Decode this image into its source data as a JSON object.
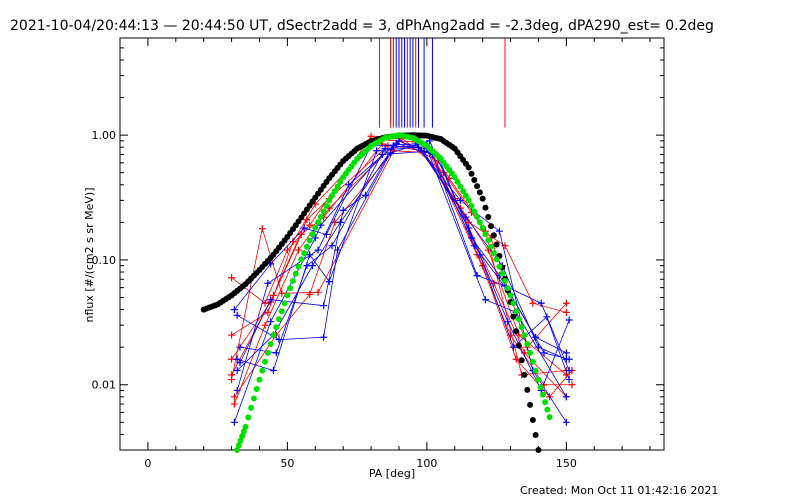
{
  "chart_data": {
    "type": "line",
    "title": "2021-10-04/20:44:13 — 20:44:50 UT, dSectr2add = 3, dPhAng2add = -2.3deg, dPA290_est=  0.2deg",
    "xlabel": "PA [deg]",
    "ylabel": "nflux [#/(cm2 s sr MeV)]",
    "xlim": [
      -10,
      185
    ],
    "ylim": [
      0.003,
      6.0
    ],
    "yscale": "log",
    "grid": false,
    "legend": "none",
    "x_ticks": [
      0,
      50,
      100,
      150
    ],
    "x_tick_labels": [
      "0",
      "50",
      "100",
      "150"
    ],
    "y_ticks": [
      0.01,
      0.1,
      1.0
    ],
    "y_tick_labels": [
      "0.01",
      "0.10",
      "1.00"
    ],
    "colors": {
      "red": "#ff0000",
      "blue": "#0000ff",
      "green": "#00e000",
      "black": "#000000"
    },
    "footer": "Created: Mon Oct 11 01:42:16 2021",
    "markers_pa": {
      "red": [
        83,
        87,
        88,
        90,
        92,
        93,
        96,
        128
      ],
      "blue": [
        89,
        90,
        91,
        92,
        94,
        95,
        97,
        99,
        102
      ]
    },
    "series": [
      {
        "color": "red",
        "values": [
          [
            30,
            0.072
          ],
          [
            42,
            0.045
          ],
          [
            50,
            0.12
          ],
          [
            58,
            0.19
          ],
          [
            80,
            0.98
          ],
          [
            95,
            0.95
          ],
          [
            110,
            0.31
          ],
          [
            122,
            0.12
          ],
          [
            133,
            0.025
          ],
          [
            150,
            0.012
          ]
        ]
      },
      {
        "color": "red",
        "values": [
          [
            30,
            0.025
          ],
          [
            43,
            0.038
          ],
          [
            52,
            0.14
          ],
          [
            60,
            0.28
          ],
          [
            82,
            0.92
          ],
          [
            96,
            0.88
          ],
          [
            112,
            0.26
          ],
          [
            124,
            0.065
          ],
          [
            135,
            0.018
          ],
          [
            150,
            0.008
          ]
        ]
      },
      {
        "color": "red",
        "values": [
          [
            30,
            0.016
          ],
          [
            44,
            0.046
          ],
          [
            55,
            0.16
          ],
          [
            63,
            0.22
          ],
          [
            84,
            0.85
          ],
          [
            98,
            0.75
          ],
          [
            115,
            0.2
          ],
          [
            128,
            0.13
          ],
          [
            138,
            0.045
          ],
          [
            150,
            0.038
          ]
        ]
      },
      {
        "color": "red",
        "values": [
          [
            30,
            0.012
          ],
          [
            45,
            0.052
          ],
          [
            57,
            0.21
          ],
          [
            65,
            0.31
          ],
          [
            86,
            0.82
          ],
          [
            100,
            0.8
          ],
          [
            118,
            0.11
          ],
          [
            130,
            0.025
          ],
          [
            142,
            0.01
          ],
          [
            152,
            0.01
          ]
        ]
      },
      {
        "color": "red",
        "values": [
          [
            31,
            0.008
          ],
          [
            46,
            0.025
          ],
          [
            58,
            0.053
          ],
          [
            67,
            0.2
          ],
          [
            88,
            0.75
          ],
          [
            102,
            0.72
          ],
          [
            120,
            0.09
          ],
          [
            132,
            0.016
          ],
          [
            144,
            0.008
          ],
          [
            152,
            0.013
          ]
        ]
      },
      {
        "color": "red",
        "values": [
          [
            30,
            0.011
          ],
          [
            41,
            0.178
          ],
          [
            48,
            0.054
          ],
          [
            61,
            0.055
          ],
          [
            90,
            0.9
          ],
          [
            104,
            0.62
          ],
          [
            108,
            0.45
          ],
          [
            123,
            0.15
          ],
          [
            136,
            0.02
          ],
          [
            150,
            0.045
          ]
        ]
      },
      {
        "color": "red",
        "values": [
          [
            31,
            0.007
          ],
          [
            42,
            0.03
          ],
          [
            54,
            0.12
          ],
          [
            65,
            0.26
          ],
          [
            91,
            0.95
          ],
          [
            106,
            0.5
          ],
          [
            116,
            0.24
          ],
          [
            121,
            0.17
          ],
          [
            134,
            0.012
          ],
          [
            150,
            0.013
          ]
        ]
      },
      {
        "color": "blue",
        "values": [
          [
            31,
            0.04
          ],
          [
            44,
            0.093
          ],
          [
            56,
            0.18
          ],
          [
            64,
            0.16
          ],
          [
            80,
            0.82
          ],
          [
            96,
            0.85
          ],
          [
            112,
            0.3
          ],
          [
            126,
            0.17
          ],
          [
            138,
            0.013
          ],
          [
            150,
            0.005
          ]
        ]
      },
      {
        "color": "blue",
        "values": [
          [
            32,
            0.016
          ],
          [
            45,
            0.013
          ],
          [
            58,
            0.11
          ],
          [
            65,
            0.067
          ],
          [
            82,
            0.75
          ],
          [
            97,
            0.8
          ],
          [
            114,
            0.22
          ],
          [
            127,
            0.09
          ],
          [
            140,
            0.02
          ],
          [
            150,
            0.016
          ]
        ]
      },
      {
        "color": "blue",
        "values": [
          [
            31,
            0.005
          ],
          [
            44,
            0.032
          ],
          [
            60,
            0.15
          ],
          [
            62,
            0.19
          ],
          [
            84,
            0.7
          ],
          [
            99,
            0.74
          ],
          [
            115,
            0.18
          ],
          [
            129,
            0.032
          ],
          [
            141,
            0.009
          ],
          [
            151,
            0.033
          ]
        ]
      },
      {
        "color": "blue",
        "values": [
          [
            33,
            0.02
          ],
          [
            46,
            0.018
          ],
          [
            57,
            0.09
          ],
          [
            66,
            0.13
          ],
          [
            85,
            0.78
          ],
          [
            100,
            0.85
          ],
          [
            117,
            0.13
          ],
          [
            130,
            0.053
          ],
          [
            142,
            0.018
          ],
          [
            151,
            0.016
          ]
        ]
      },
      {
        "color": "blue",
        "values": [
          [
            32,
            0.036
          ],
          [
            47,
            0.023
          ],
          [
            63,
            0.024
          ],
          [
            68,
            0.12
          ],
          [
            87,
            0.72
          ],
          [
            101,
            0.9
          ],
          [
            119,
            0.11
          ],
          [
            131,
            0.02
          ],
          [
            143,
            0.035
          ],
          [
            151,
            0.011
          ]
        ]
      },
      {
        "color": "blue",
        "values": [
          [
            33,
            0.015
          ],
          [
            44,
            0.048
          ],
          [
            63,
            0.043
          ],
          [
            70,
            0.25
          ],
          [
            78,
            0.33
          ],
          [
            88,
            0.82
          ],
          [
            100,
            0.78
          ],
          [
            121,
            0.048
          ],
          [
            132,
            0.038
          ],
          [
            150,
            0.008
          ]
        ]
      },
      {
        "color": "blue",
        "values": [
          [
            32,
            0.013
          ],
          [
            45,
            0.025
          ],
          [
            59,
            0.09
          ],
          [
            69,
            0.2
          ],
          [
            89,
            0.86
          ],
          [
            102,
            0.7
          ],
          [
            118,
            0.075
          ],
          [
            128,
            0.062
          ],
          [
            141,
            0.045
          ],
          [
            151,
            0.013
          ]
        ]
      },
      {
        "color": "blue",
        "values": [
          [
            32,
            0.009
          ],
          [
            43,
            0.065
          ],
          [
            61,
            0.12
          ],
          [
            72,
            0.4
          ],
          [
            90,
            0.9
          ],
          [
            104,
            0.68
          ],
          [
            116,
            0.15
          ],
          [
            126,
            0.075
          ],
          [
            139,
            0.024
          ],
          [
            150,
            0.018
          ]
        ]
      }
    ],
    "fits": [
      {
        "color": "black",
        "style": "dotted",
        "values": [
          [
            20,
            0.04
          ],
          [
            25,
            0.044
          ],
          [
            30,
            0.052
          ],
          [
            35,
            0.064
          ],
          [
            40,
            0.083
          ],
          [
            45,
            0.11
          ],
          [
            50,
            0.153
          ],
          [
            55,
            0.219
          ],
          [
            60,
            0.316
          ],
          [
            65,
            0.452
          ],
          [
            70,
            0.62
          ],
          [
            75,
            0.78
          ],
          [
            80,
            0.894
          ],
          [
            85,
            0.96
          ],
          [
            90,
            0.99
          ],
          [
            95,
            1.0
          ],
          [
            100,
            0.99
          ],
          [
            105,
            0.93
          ],
          [
            110,
            0.78
          ],
          [
            115,
            0.55
          ],
          [
            120,
            0.31
          ],
          [
            125,
            0.133
          ],
          [
            130,
            0.046
          ],
          [
            135,
            0.012
          ],
          [
            140,
            0.003
          ]
        ]
      },
      {
        "color": "green",
        "style": "dotted",
        "values": [
          [
            32,
            0.003
          ],
          [
            35,
            0.0046
          ],
          [
            40,
            0.011
          ],
          [
            45,
            0.025
          ],
          [
            50,
            0.052
          ],
          [
            55,
            0.101
          ],
          [
            60,
            0.181
          ],
          [
            65,
            0.3
          ],
          [
            70,
            0.46
          ],
          [
            75,
            0.645
          ],
          [
            80,
            0.82
          ],
          [
            85,
            0.95
          ],
          [
            90,
            1.0
          ],
          [
            95,
            0.95
          ],
          [
            100,
            0.82
          ],
          [
            105,
            0.645
          ],
          [
            110,
            0.46
          ],
          [
            115,
            0.3
          ],
          [
            120,
            0.181
          ],
          [
            125,
            0.101
          ],
          [
            130,
            0.052
          ],
          [
            135,
            0.025
          ],
          [
            140,
            0.011
          ],
          [
            144,
            0.0055
          ]
        ]
      }
    ]
  }
}
